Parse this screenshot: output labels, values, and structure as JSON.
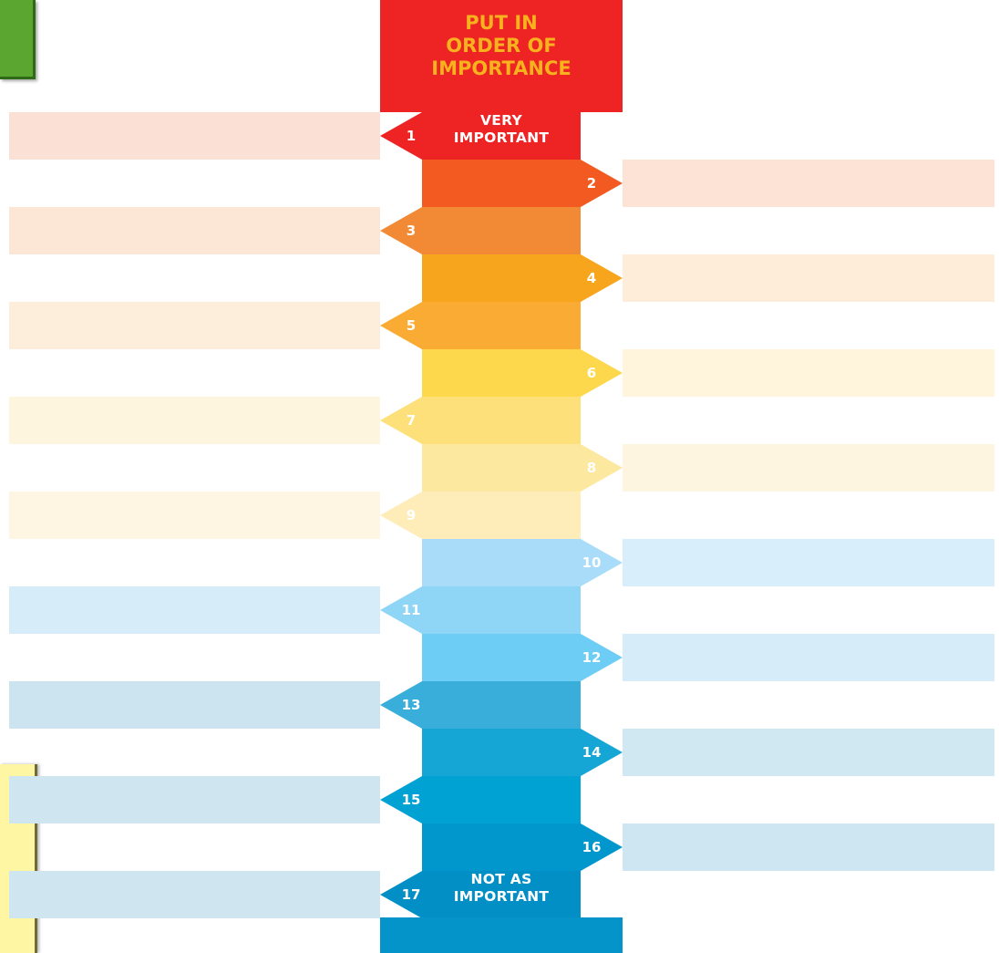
{
  "title": "PUT IN\nORDER OF\nIMPORTANCE",
  "top_caption": [
    "VERY",
    "IMPORTANT"
  ],
  "bottom_caption": [
    "NOT AS",
    "IMPORTANT"
  ],
  "colors": {
    "header": "#ee2424",
    "title_text": "#f7b21e",
    "footer": "#0494c9"
  },
  "ranks": [
    {
      "number": "1",
      "side": "left",
      "color": "#ee2424",
      "lane": "#fbe0d5"
    },
    {
      "number": "2",
      "side": "right",
      "color": "#f25a22",
      "lane": "#fce3d5"
    },
    {
      "number": "3",
      "side": "left",
      "color": "#f28a35",
      "lane": "#fce6d6"
    },
    {
      "number": "4",
      "side": "right",
      "color": "#f7a51c",
      "lane": "#fdedd9"
    },
    {
      "number": "5",
      "side": "left",
      "color": "#f9ab34",
      "lane": "#fdeedb"
    },
    {
      "number": "6",
      "side": "right",
      "color": "#fdd84d",
      "lane": "#fef5dc"
    },
    {
      "number": "7",
      "side": "left",
      "color": "#fde07a",
      "lane": "#fef5de"
    },
    {
      "number": "8",
      "side": "right",
      "color": "#fde8a0",
      "lane": "#fef5e0"
    },
    {
      "number": "9",
      "side": "left",
      "color": "#feedb9",
      "lane": "#fef6e3"
    },
    {
      "number": "10",
      "side": "right",
      "color": "#a9dcf8",
      "lane": "#d9eefb"
    },
    {
      "number": "11",
      "side": "left",
      "color": "#8fd5f6",
      "lane": "#d6edf9"
    },
    {
      "number": "12",
      "side": "right",
      "color": "#6ecdf4",
      "lane": "#d6edf9"
    },
    {
      "number": "13",
      "side": "left",
      "color": "#3aaedb",
      "lane": "#cbe4ef"
    },
    {
      "number": "14",
      "side": "right",
      "color": "#16a6d6",
      "lane": "#d0e8f2"
    },
    {
      "number": "15",
      "side": "left",
      "color": "#00a1d3",
      "lane": "#cfe6f1"
    },
    {
      "number": "16",
      "side": "right",
      "color": "#0297cc",
      "lane": "#cde6f1"
    },
    {
      "number": "17",
      "side": "left",
      "color": "#028fc5",
      "lane": "#cfe5f0"
    }
  ]
}
